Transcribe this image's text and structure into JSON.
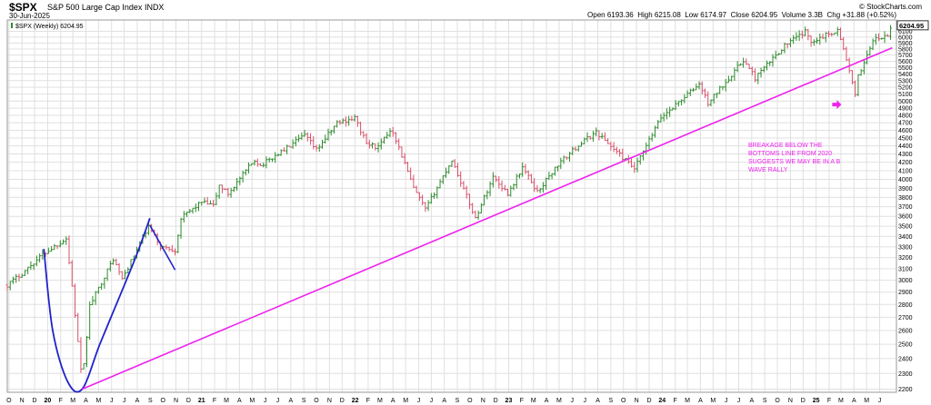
{
  "header": {
    "ticker": "$SPX",
    "name": "S&P 500 Large Cap Index",
    "exchange": "INDX",
    "date": "30-Jun-2025",
    "brand": "© StockCharts.com",
    "open_label": "Open",
    "open": "6193.36",
    "high_label": "High",
    "high": "6215.08",
    "low_label": "Low",
    "low": "6174.97",
    "close_label": "Close",
    "close": "6204.95",
    "volume_label": "Volume",
    "volume": "3.3B",
    "chg_label": "Chg",
    "chg": "+31.88 (+0.52%)"
  },
  "legend": "$SPX (Weekly) 6204.95",
  "last_price": "6204.95",
  "colors": {
    "up": "#2e8b2e",
    "down": "#d8506a",
    "trendline": "#ee22ee",
    "curve": "#2222cc",
    "annotation": "#ee22ee",
    "grid": "#e0e0e0"
  },
  "chart_data": {
    "type": "ohlc-bar",
    "title": "$SPX S&P 500 Large Cap Index",
    "interval": "weekly",
    "y_scale": "log",
    "ylim": [
      2180,
      6300
    ],
    "y_ticks": [
      2200,
      2300,
      2400,
      2500,
      2600,
      2700,
      2800,
      2900,
      3000,
      3100,
      3200,
      3300,
      3400,
      3500,
      3600,
      3700,
      3800,
      3900,
      4000,
      4100,
      4200,
      4300,
      4400,
      4500,
      4600,
      4700,
      4800,
      4900,
      5000,
      5100,
      5200,
      5300,
      5400,
      5500,
      5600,
      5700,
      5800,
      5900,
      6000,
      6100
    ],
    "x_range": [
      "2019-09-27",
      "2025-07-11"
    ],
    "x_labels": [
      {
        "d": "2019-10-01",
        "t": "O"
      },
      {
        "d": "2019-11-01",
        "t": "N"
      },
      {
        "d": "2019-12-01",
        "t": "D"
      },
      {
        "d": "2020-01-01",
        "t": "20",
        "year": true
      },
      {
        "d": "2020-02-01",
        "t": "F"
      },
      {
        "d": "2020-03-01",
        "t": "M"
      },
      {
        "d": "2020-04-01",
        "t": "A"
      },
      {
        "d": "2020-05-01",
        "t": "M"
      },
      {
        "d": "2020-06-01",
        "t": "J"
      },
      {
        "d": "2020-07-01",
        "t": "J"
      },
      {
        "d": "2020-08-01",
        "t": "A"
      },
      {
        "d": "2020-09-01",
        "t": "S"
      },
      {
        "d": "2020-10-01",
        "t": "O"
      },
      {
        "d": "2020-11-01",
        "t": "N"
      },
      {
        "d": "2020-12-01",
        "t": "D"
      },
      {
        "d": "2021-01-01",
        "t": "21",
        "year": true
      },
      {
        "d": "2021-02-01",
        "t": "F"
      },
      {
        "d": "2021-03-01",
        "t": "M"
      },
      {
        "d": "2021-04-01",
        "t": "A"
      },
      {
        "d": "2021-05-01",
        "t": "M"
      },
      {
        "d": "2021-06-01",
        "t": "J"
      },
      {
        "d": "2021-07-01",
        "t": "J"
      },
      {
        "d": "2021-08-01",
        "t": "A"
      },
      {
        "d": "2021-09-01",
        "t": "S"
      },
      {
        "d": "2021-10-01",
        "t": "O"
      },
      {
        "d": "2021-11-01",
        "t": "N"
      },
      {
        "d": "2021-12-01",
        "t": "D"
      },
      {
        "d": "2022-01-01",
        "t": "22",
        "year": true
      },
      {
        "d": "2022-02-01",
        "t": "F"
      },
      {
        "d": "2022-03-01",
        "t": "M"
      },
      {
        "d": "2022-04-01",
        "t": "A"
      },
      {
        "d": "2022-05-01",
        "t": "M"
      },
      {
        "d": "2022-06-01",
        "t": "J"
      },
      {
        "d": "2022-07-01",
        "t": "J"
      },
      {
        "d": "2022-08-01",
        "t": "A"
      },
      {
        "d": "2022-09-01",
        "t": "S"
      },
      {
        "d": "2022-10-01",
        "t": "O"
      },
      {
        "d": "2022-11-01",
        "t": "N"
      },
      {
        "d": "2022-12-01",
        "t": "D"
      },
      {
        "d": "2023-01-01",
        "t": "23",
        "year": true
      },
      {
        "d": "2023-02-01",
        "t": "F"
      },
      {
        "d": "2023-03-01",
        "t": "M"
      },
      {
        "d": "2023-04-01",
        "t": "A"
      },
      {
        "d": "2023-05-01",
        "t": "M"
      },
      {
        "d": "2023-06-01",
        "t": "J"
      },
      {
        "d": "2023-07-01",
        "t": "J"
      },
      {
        "d": "2023-08-01",
        "t": "A"
      },
      {
        "d": "2023-09-01",
        "t": "S"
      },
      {
        "d": "2023-10-01",
        "t": "O"
      },
      {
        "d": "2023-11-01",
        "t": "N"
      },
      {
        "d": "2023-12-01",
        "t": "D"
      },
      {
        "d": "2024-01-01",
        "t": "24",
        "year": true
      },
      {
        "d": "2024-02-01",
        "t": "F"
      },
      {
        "d": "2024-03-01",
        "t": "M"
      },
      {
        "d": "2024-04-01",
        "t": "A"
      },
      {
        "d": "2024-05-01",
        "t": "M"
      },
      {
        "d": "2024-06-01",
        "t": "J"
      },
      {
        "d": "2024-07-01",
        "t": "J"
      },
      {
        "d": "2024-08-01",
        "t": "A"
      },
      {
        "d": "2024-09-01",
        "t": "S"
      },
      {
        "d": "2024-10-01",
        "t": "O"
      },
      {
        "d": "2024-11-01",
        "t": "N"
      },
      {
        "d": "2024-12-01",
        "t": "D"
      },
      {
        "d": "2025-01-01",
        "t": "25",
        "year": true
      },
      {
        "d": "2025-02-01",
        "t": "F"
      },
      {
        "d": "2025-03-01",
        "t": "M"
      },
      {
        "d": "2025-04-01",
        "t": "A"
      },
      {
        "d": "2025-05-01",
        "t": "M"
      },
      {
        "d": "2025-06-01",
        "t": "J"
      }
    ],
    "path_points": [
      [
        "2019-09-27",
        2960
      ],
      [
        "2019-11-01",
        3060
      ],
      [
        "2019-12-20",
        3230
      ],
      [
        "2020-02-14",
        3380
      ],
      [
        "2020-02-28",
        2950
      ],
      [
        "2020-03-23",
        2240
      ],
      [
        "2020-04-10",
        2790
      ],
      [
        "2020-06-05",
        3190
      ],
      [
        "2020-06-26",
        3010
      ],
      [
        "2020-08-28",
        3500
      ],
      [
        "2020-09-25",
        3300
      ],
      [
        "2020-10-30",
        3270
      ],
      [
        "2020-11-13",
        3580
      ],
      [
        "2020-12-31",
        3750
      ],
      [
        "2021-01-29",
        3710
      ],
      [
        "2021-02-12",
        3930
      ],
      [
        "2021-03-05",
        3840
      ],
      [
        "2021-05-07",
        4230
      ],
      [
        "2021-05-21",
        4160
      ],
      [
        "2021-07-30",
        4400
      ],
      [
        "2021-09-03",
        4535
      ],
      [
        "2021-10-01",
        4350
      ],
      [
        "2021-11-19",
        4700
      ],
      [
        "2021-12-31",
        4766
      ],
      [
        "2022-01-28",
        4430
      ],
      [
        "2022-02-25",
        4380
      ],
      [
        "2022-03-29",
        4630
      ],
      [
        "2022-05-20",
        3900
      ],
      [
        "2022-06-17",
        3670
      ],
      [
        "2022-08-19",
        4230
      ],
      [
        "2022-10-14",
        3580
      ],
      [
        "2022-11-25",
        4030
      ],
      [
        "2022-12-30",
        3840
      ],
      [
        "2023-02-03",
        4140
      ],
      [
        "2023-03-10",
        3860
      ],
      [
        "2023-04-28",
        4170
      ],
      [
        "2023-06-16",
        4410
      ],
      [
        "2023-07-28",
        4580
      ],
      [
        "2023-10-27",
        4120
      ],
      [
        "2023-12-29",
        4770
      ],
      [
        "2024-03-29",
        5250
      ],
      [
        "2024-04-19",
        4970
      ],
      [
        "2024-07-12",
        5620
      ],
      [
        "2024-08-09",
        5340
      ],
      [
        "2024-10-18",
        5860
      ],
      [
        "2024-12-06",
        6090
      ],
      [
        "2024-12-20",
        5930
      ],
      [
        "2025-02-21",
        6120
      ],
      [
        "2025-03-14",
        5640
      ],
      [
        "2025-04-04",
        5070
      ],
      [
        "2025-04-11",
        5360
      ],
      [
        "2025-05-16",
        5950
      ],
      [
        "2025-06-20",
        6010
      ],
      [
        "2025-06-30",
        6205
      ]
    ]
  },
  "annotations": {
    "trendline": [
      [
        "2020-03-23",
        2200
      ],
      [
        "2025-07-01",
        5820
      ]
    ],
    "blue_curve_points": [
      [
        "2019-12-23",
        3280
      ],
      [
        "2020-01-13",
        2600
      ],
      [
        "2020-02-17",
        2250
      ],
      [
        "2020-03-23",
        2200
      ],
      [
        "2020-05-04",
        2500
      ],
      [
        "2020-06-22",
        2880
      ],
      [
        "2020-07-31",
        3230
      ],
      [
        "2020-08-31",
        3580
      ]
    ],
    "blue_line": [
      [
        "2020-08-31",
        3510
      ],
      [
        "2020-10-30",
        3090
      ]
    ],
    "arrow_at": [
      "2025-02-17",
      4950
    ],
    "note_lines": [
      "BREAKAGE BELOW THE",
      "BOTTOMS LINE FROM 2020",
      "SUGGESTS WE MAY BE IN A B",
      "WAVE RALLY"
    ]
  }
}
